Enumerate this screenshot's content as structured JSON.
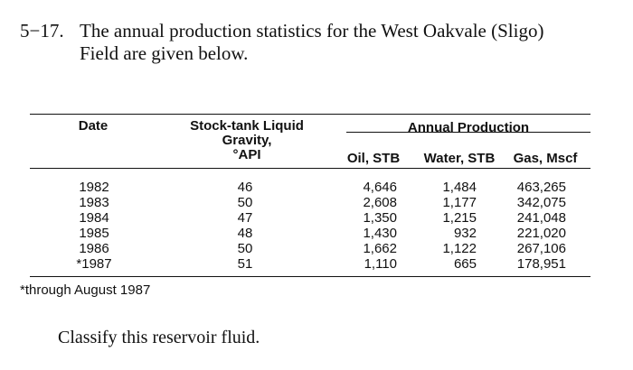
{
  "problem": {
    "number": "5−17.",
    "line1": "The annual production statistics for the West Oakvale (Sligo)",
    "line2": "Field are given below."
  },
  "table": {
    "headers": {
      "date": "Date",
      "gravity": [
        "Stock-tank Liquid",
        "Gravity,",
        "°API"
      ],
      "annual_production": "Annual Production",
      "oil": "Oil, STB",
      "water": "Water, STB",
      "gas": "Gas, Mscf"
    },
    "rows": [
      {
        "date": "1982",
        "gravity": "46",
        "oil": "4,646",
        "water": "1,484",
        "gas": "463,265"
      },
      {
        "date": "1983",
        "gravity": "50",
        "oil": "2,608",
        "water": "1,177",
        "gas": "342,075"
      },
      {
        "date": "1984",
        "gravity": "47",
        "oil": "1,350",
        "water": "1,215",
        "gas": "241,048"
      },
      {
        "date": "1985",
        "gravity": "48",
        "oil": "1,430",
        "water": "932",
        "gas": "221,020"
      },
      {
        "date": "1986",
        "gravity": "50",
        "oil": "1,662",
        "water": "1,122",
        "gas": "267,106"
      },
      {
        "date": "*1987",
        "gravity": "51",
        "oil": "1,110",
        "water": "665",
        "gas": "178,951"
      }
    ],
    "footnote": "*through August 1987"
  },
  "question": "Classify this reservoir fluid."
}
